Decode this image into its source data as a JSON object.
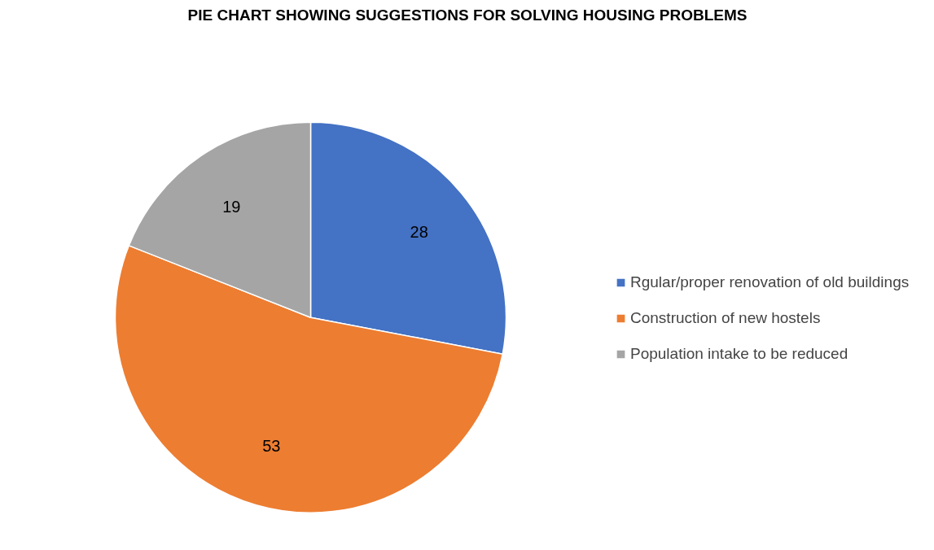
{
  "chart_data": {
    "type": "pie",
    "title": "PIE CHART SHOWING SUGGESTIONS FOR SOLVING HOUSING PROBLEMS",
    "categories": [
      "Rgular/proper renovation of old buildings",
      "Construction of new hostels",
      "Population intake to be reduced"
    ],
    "values": [
      28,
      53,
      19
    ],
    "colors": [
      "#4472c4",
      "#ed7d31",
      "#a5a5a5"
    ],
    "data_labels": true,
    "legend": "right"
  }
}
